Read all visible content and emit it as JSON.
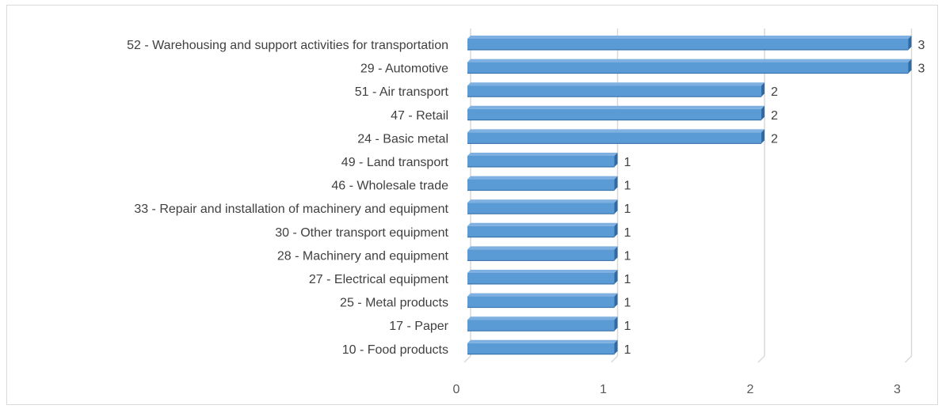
{
  "chart_data": {
    "type": "bar",
    "orientation": "horizontal",
    "categories": [
      "52 - Warehousing and support activities for transportation",
      "29 - Automotive",
      "51 - Air transport",
      "47 - Retail",
      "24 - Basic metal",
      "49 - Land transport",
      "46 - Wholesale trade",
      "33 - Repair and installation of machinery and equipment",
      "30 - Other transport equipment",
      "28 - Machinery and equipment",
      "27 - Electrical equipment",
      "25 - Metal products",
      "17 - Paper",
      "10 - Food products"
    ],
    "values": [
      3,
      3,
      2,
      2,
      2,
      1,
      1,
      1,
      1,
      1,
      1,
      1,
      1,
      1
    ],
    "xticks": [
      0,
      1,
      2,
      3
    ],
    "xlim": [
      0,
      3
    ],
    "grid": true,
    "legend": "none",
    "data_labels": true,
    "colors": {
      "bar_front": "#5b9bd5",
      "bar_top": "#7eb1e1",
      "bar_side": "#2e6aa5",
      "gridline": "#d9d9d9"
    }
  }
}
